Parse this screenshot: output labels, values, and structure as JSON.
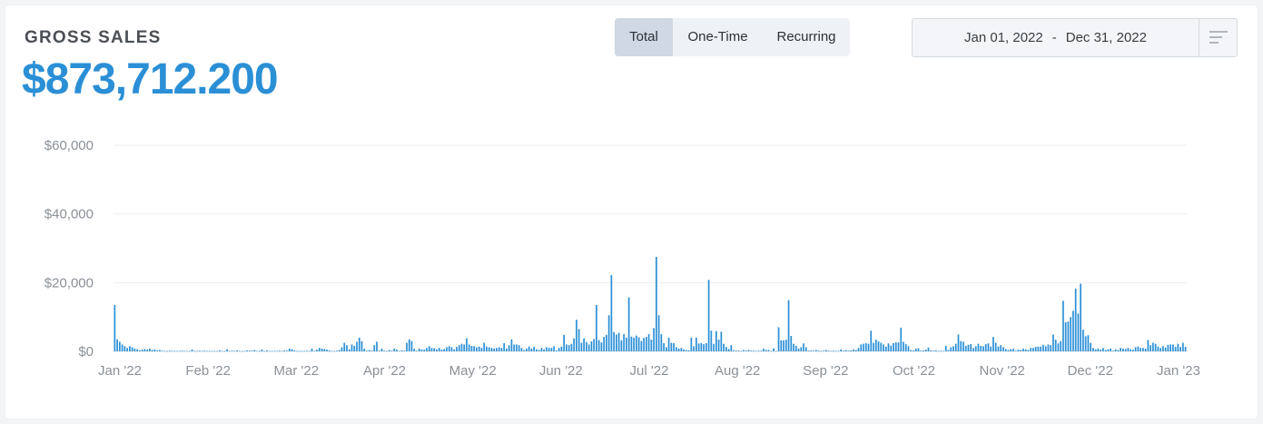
{
  "header": {
    "title": "GROSS SALES",
    "amount": "$873,712.200"
  },
  "filters": {
    "segments": [
      "Total",
      "One-Time",
      "Recurring"
    ],
    "selected": "Total"
  },
  "date_range": {
    "start": "Jan 01, 2022",
    "separator": "-",
    "end": "Dec 31, 2022"
  },
  "icons": {
    "menu": "filter-lines-icon"
  },
  "colors": {
    "accent": "#2b8fd6",
    "bar": "#2b8fd6",
    "grid": "#eceef1"
  },
  "chart_data": {
    "type": "bar",
    "title": "",
    "xlabel": "",
    "ylabel": "",
    "ylim": [
      0,
      60000
    ],
    "y_ticks": [
      0,
      20000,
      40000,
      60000
    ],
    "y_tick_labels": [
      "$0",
      "$20,000",
      "$40,000",
      "$60,000"
    ],
    "x_tick_labels": [
      "Jan '22",
      "Feb '22",
      "Mar '22",
      "Apr '22",
      "May '22",
      "Jun '22",
      "Jul '22",
      "Aug '22",
      "Sep '22",
      "Oct '22",
      "Nov '22",
      "Dec '22",
      "Jan '23"
    ],
    "grid": true,
    "series": [
      {
        "values": [
          13500,
          3500,
          2800,
          2000,
          1500,
          1000,
          1500,
          1200,
          800,
          600,
          300,
          500,
          700,
          500,
          800,
          400,
          600,
          300,
          400,
          200,
          100,
          100,
          200,
          100,
          100,
          100,
          100,
          200,
          100,
          100,
          100,
          500,
          100,
          100,
          200,
          100,
          200,
          100,
          100,
          100,
          100,
          100,
          300,
          100,
          100,
          600,
          100,
          200,
          100,
          300,
          100,
          100,
          100,
          300,
          200,
          200,
          400,
          100,
          200,
          500,
          100,
          300,
          100,
          100,
          100,
          100,
          200,
          100,
          300,
          200,
          800,
          600,
          300,
          100,
          100,
          100,
          100,
          200,
          100,
          800,
          100,
          500,
          1000,
          800,
          700,
          500,
          300,
          100,
          100,
          200,
          400,
          1200,
          2500,
          1800,
          600,
          2000,
          1600,
          2800,
          4000,
          3000,
          800,
          200,
          400,
          200,
          1800,
          2800,
          200,
          800,
          200,
          100,
          400,
          200,
          800,
          500,
          100,
          300,
          200,
          2500,
          3500,
          3000,
          800,
          200,
          800,
          500,
          500,
          1000,
          1500,
          1000,
          900,
          600,
          1000,
          500,
          700,
          1200,
          1500,
          1200,
          600,
          1300,
          1800,
          2200,
          2000,
          3800,
          2000,
          1600,
          1500,
          1200,
          1400,
          1000,
          2500,
          1400,
          1200,
          1000,
          800,
          1000,
          1200,
          1000,
          2400,
          800,
          1800,
          3500,
          2000,
          2000,
          1800,
          1000,
          400,
          800,
          1400,
          800,
          1300,
          600,
          400,
          1000,
          600,
          1200,
          1000,
          1000,
          1500,
          300,
          1000,
          1400,
          4800,
          2000,
          1800,
          2200,
          3800,
          9200,
          6500,
          2500,
          3800,
          2700,
          2000,
          2900,
          3600,
          13500,
          3300,
          2600,
          4200,
          4800,
          10500,
          22200,
          5600,
          4900,
          5400,
          3200,
          5000,
          4000,
          15700,
          4300,
          4000,
          4600,
          4100,
          3000,
          3900,
          4200,
          5000,
          3400,
          6800,
          27500,
          10500,
          5000,
          2400,
          1200,
          4000,
          2500,
          2400,
          1200,
          800,
          1000,
          600,
          400,
          300,
          4000,
          1500,
          4000,
          2300,
          2400,
          2100,
          2400,
          20800,
          6000,
          2200,
          5900,
          3400,
          5700,
          2200,
          1300,
          700,
          1800,
          300,
          200,
          200,
          100,
          400,
          200,
          400,
          200,
          200,
          100,
          200,
          200,
          800,
          400,
          400,
          100,
          900,
          100,
          7000,
          3200,
          3200,
          3400,
          14900,
          4500,
          2200,
          1600,
          800,
          1200,
          2300,
          1200,
          200,
          300,
          200,
          400,
          200,
          100,
          200,
          400,
          200,
          100,
          200,
          100,
          100,
          600,
          200,
          400,
          200,
          300,
          600,
          400,
          1000,
          2000,
          2200,
          2400,
          2200,
          6000,
          2500,
          3400,
          2900,
          2500,
          2000,
          1400,
          2300,
          1700,
          2400,
          2600,
          2600,
          6900,
          2800,
          2100,
          1500,
          400,
          300,
          800,
          900,
          200,
          300,
          500,
          1100,
          300,
          200,
          300,
          100,
          200,
          100,
          1600,
          400,
          1200,
          1500,
          2200,
          4900,
          3000,
          2800,
          1600,
          1900,
          2100,
          1000,
          1500,
          2200,
          1600,
          1500,
          2100,
          2300,
          1400,
          4200,
          2500,
          1400,
          1800,
          1200,
          700,
          400,
          600,
          800,
          200,
          500,
          400,
          800,
          600,
          400,
          1000,
          1000,
          1300,
          1400,
          1400,
          1900,
          1500,
          2000,
          1800,
          4900,
          3400,
          2300,
          3000,
          14700,
          8500,
          8700,
          10000,
          11800,
          18300,
          11000,
          19700,
          6300,
          4400,
          4700,
          2500,
          1000,
          600,
          800,
          500,
          1000,
          400,
          600,
          800,
          200,
          600,
          400,
          1000,
          800,
          700,
          1000,
          600,
          500,
          1200,
          1400,
          1000,
          1000,
          800,
          3300,
          1800,
          2500,
          2200,
          1400,
          1000,
          1500,
          1100,
          1900,
          2000,
          2000,
          1300,
          2200,
          1300,
          2500,
          1300
        ]
      }
    ]
  }
}
